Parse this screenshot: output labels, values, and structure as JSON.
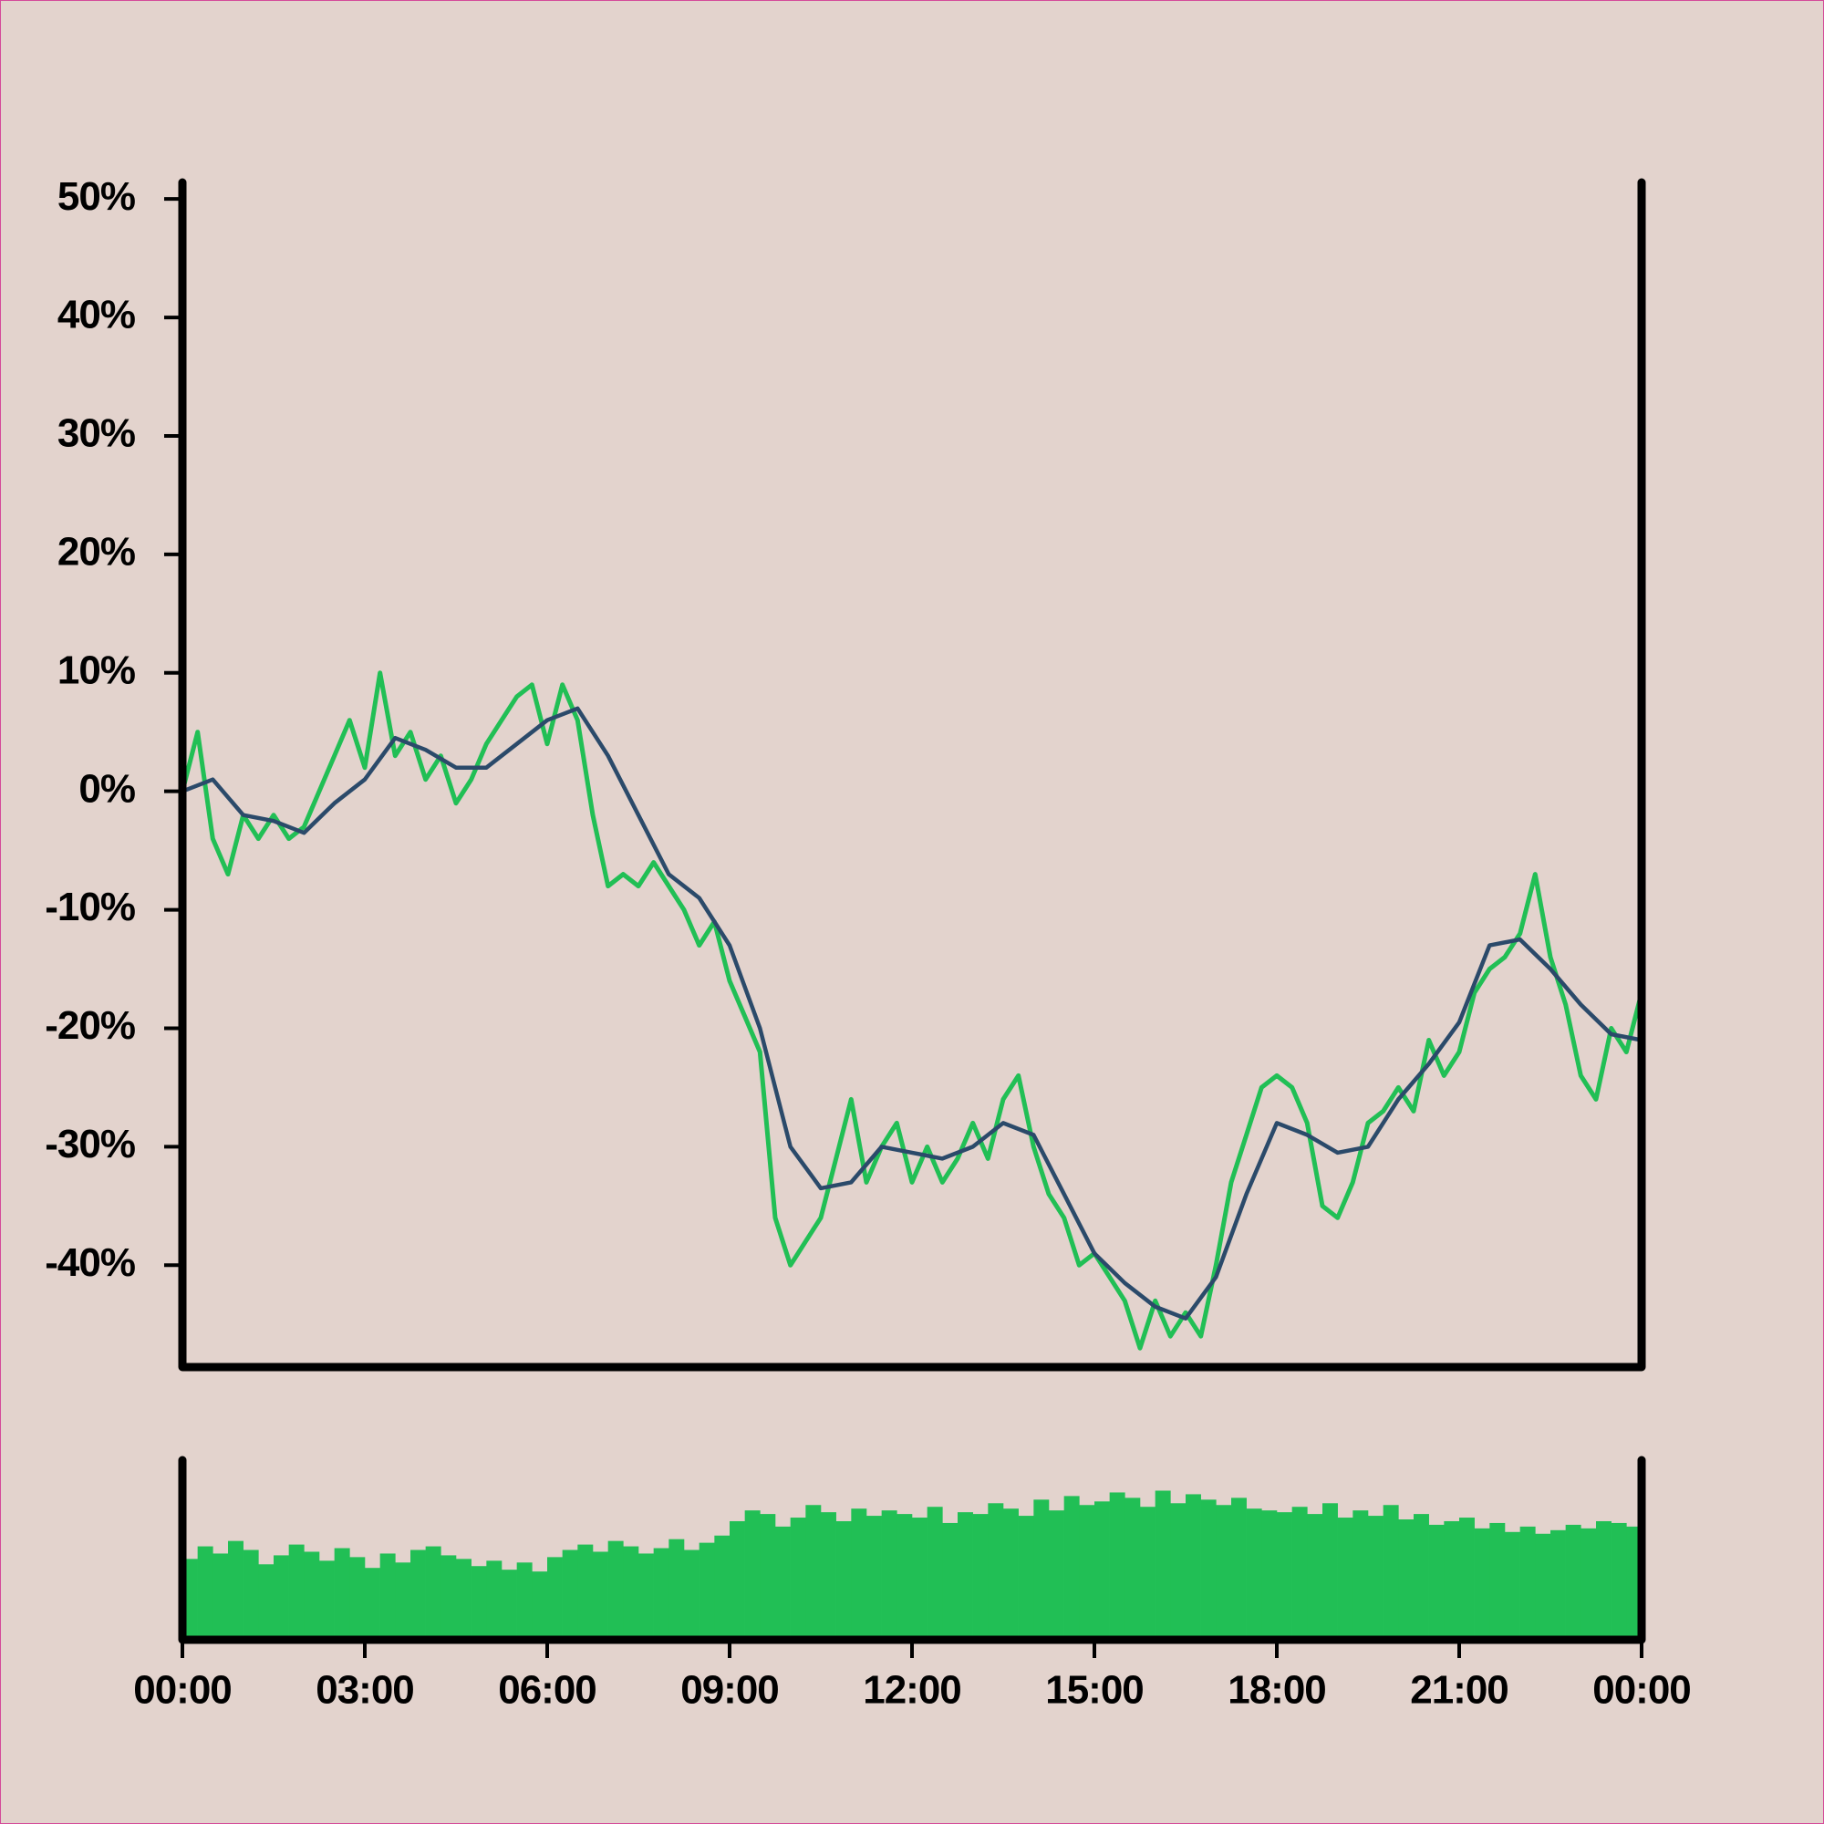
{
  "chart_data": [
    {
      "type": "line",
      "xlim": [
        0,
        24
      ],
      "ylim": [
        -48.6,
        51.4
      ],
      "yticks": [
        {
          "value": -40,
          "label": "-40%"
        },
        {
          "value": -30,
          "label": "-30%"
        },
        {
          "value": -20,
          "label": "-20%"
        },
        {
          "value": -10,
          "label": "-10%"
        },
        {
          "value": 0,
          "label": "0%"
        },
        {
          "value": 10,
          "label": "10%"
        },
        {
          "value": 20,
          "label": "20%"
        },
        {
          "value": 30,
          "label": "30%"
        },
        {
          "value": 40,
          "label": "40%"
        },
        {
          "value": 50,
          "label": "50%"
        }
      ],
      "series": [
        {
          "color": "#21bf55",
          "x": [
            0,
            0.25,
            0.5,
            0.75,
            1,
            1.25,
            1.5,
            1.75,
            2,
            2.25,
            2.5,
            2.75,
            3,
            3.25,
            3.5,
            3.75,
            4,
            4.25,
            4.5,
            4.75,
            5,
            5.25,
            5.5,
            5.75,
            6,
            6.25,
            6.5,
            6.75,
            7,
            7.25,
            7.5,
            7.75,
            8,
            8.25,
            8.5,
            8.75,
            9,
            9.25,
            9.5,
            9.75,
            10,
            10.25,
            10.5,
            10.75,
            11,
            11.25,
            11.5,
            11.75,
            12,
            12.25,
            12.5,
            12.75,
            13,
            13.25,
            13.5,
            13.75,
            14,
            14.25,
            14.5,
            14.75,
            15,
            15.25,
            15.5,
            15.75,
            16,
            16.25,
            16.5,
            16.75,
            17,
            17.25,
            17.5,
            17.75,
            18,
            18.25,
            18.5,
            18.75,
            19,
            19.25,
            19.5,
            19.75,
            20,
            20.25,
            20.5,
            20.75,
            21,
            21.25,
            21.5,
            21.75,
            22,
            22.25,
            22.5,
            22.75,
            23,
            23.25,
            23.5,
            23.75,
            24
          ],
          "values": [
            0,
            5,
            -4,
            -7,
            -2,
            -4,
            -2,
            -4,
            -3,
            0,
            3,
            6,
            2,
            10,
            3,
            5,
            1,
            3,
            -1,
            1,
            4,
            6,
            8,
            9,
            4,
            9,
            6,
            -2,
            -8,
            -7,
            -8,
            -6,
            -8,
            -10,
            -13,
            -11,
            -16,
            -19,
            -22,
            -36,
            -40,
            -38,
            -36,
            -31,
            -26,
            -33,
            -30,
            -28,
            -33,
            -30,
            -33,
            -31,
            -28,
            -31,
            -26,
            -24,
            -30,
            -34,
            -36,
            -40,
            -39,
            -41,
            -43,
            -47,
            -43,
            -46,
            -44,
            -46,
            -40,
            -33,
            -29,
            -25,
            -24,
            -25,
            -28,
            -35,
            -36,
            -33,
            -28,
            -27,
            -25,
            -27,
            -21,
            -24,
            -22,
            -17,
            -15,
            -14,
            -12,
            -7,
            -14,
            -18,
            -24,
            -26,
            -20,
            -22,
            -17
          ]
        },
        {
          "color": "#2b4a6a",
          "x": [
            0,
            0.5,
            1,
            1.5,
            2,
            2.5,
            3,
            3.5,
            4,
            4.5,
            5,
            5.5,
            6,
            6.5,
            7,
            7.5,
            8,
            8.5,
            9,
            9.5,
            10,
            10.5,
            11,
            11.5,
            12,
            12.5,
            13,
            13.5,
            14,
            14.5,
            15,
            15.5,
            16,
            16.5,
            17,
            17.5,
            18,
            18.5,
            19,
            19.5,
            20,
            20.5,
            21,
            21.5,
            22,
            22.5,
            23,
            23.5,
            24
          ],
          "values": [
            0,
            1,
            -2,
            -2.5,
            -3.5,
            -1,
            1,
            4.5,
            3.5,
            2,
            2,
            4,
            6,
            7,
            3,
            -2,
            -7,
            -9,
            -13,
            -20,
            -30,
            -33.5,
            -33,
            -30,
            -30.5,
            -31,
            -30,
            -28,
            -29,
            -34,
            -39,
            -41.5,
            -43.5,
            -44.5,
            -41,
            -34,
            -28,
            -29,
            -30.5,
            -30,
            -26,
            -23,
            -19.5,
            -13,
            -12.5,
            -15,
            -18,
            -20.5,
            -21
          ]
        }
      ]
    },
    {
      "type": "bar",
      "color": "#21bf55",
      "xlim": [
        0,
        24
      ],
      "ylim": [
        0,
        100
      ],
      "xticks": [
        {
          "value": 0,
          "label": "00:00"
        },
        {
          "value": 3,
          "label": "03:00"
        },
        {
          "value": 6,
          "label": "06:00"
        },
        {
          "value": 9,
          "label": "09:00"
        },
        {
          "value": 12,
          "label": "12:00"
        },
        {
          "value": 15,
          "label": "15:00"
        },
        {
          "value": 18,
          "label": "18:00"
        },
        {
          "value": 21,
          "label": "21:00"
        },
        {
          "value": 24,
          "label": "00:00"
        }
      ],
      "x": [
        0,
        0.25,
        0.5,
        0.75,
        1,
        1.25,
        1.5,
        1.75,
        2,
        2.25,
        2.5,
        2.75,
        3,
        3.25,
        3.5,
        3.75,
        4,
        4.25,
        4.5,
        4.75,
        5,
        5.25,
        5.5,
        5.75,
        6,
        6.25,
        6.5,
        6.75,
        7,
        7.25,
        7.5,
        7.75,
        8,
        8.25,
        8.5,
        8.75,
        9,
        9.25,
        9.5,
        9.75,
        10,
        10.25,
        10.5,
        10.75,
        11,
        11.25,
        11.5,
        11.75,
        12,
        12.25,
        12.5,
        12.75,
        13,
        13.25,
        13.5,
        13.75,
        14,
        14.25,
        14.5,
        14.75,
        15,
        15.25,
        15.5,
        15.75,
        16,
        16.25,
        16.5,
        16.75,
        17,
        17.25,
        17.5,
        17.75,
        18,
        18.25,
        18.5,
        18.75,
        19,
        19.25,
        19.5,
        19.75,
        20,
        20.25,
        20.5,
        20.75,
        21,
        21.25,
        21.5,
        21.75,
        22,
        22.25,
        22.5,
        22.75,
        23,
        23.25,
        23.5,
        23.75
      ],
      "values": [
        45,
        52,
        48,
        55,
        50,
        42,
        47,
        53,
        49,
        44,
        51,
        46,
        40,
        48,
        43,
        50,
        52,
        47,
        45,
        41,
        44,
        39,
        43,
        38,
        46,
        50,
        53,
        49,
        55,
        52,
        48,
        51,
        56,
        50,
        54,
        58,
        66,
        72,
        70,
        63,
        68,
        75,
        71,
        66,
        73,
        69,
        72,
        70,
        68,
        74,
        65,
        71,
        70,
        76,
        73,
        69,
        78,
        72,
        80,
        75,
        77,
        82,
        79,
        74,
        83,
        76,
        81,
        78,
        75,
        79,
        73,
        72,
        71,
        74,
        70,
        76,
        68,
        72,
        69,
        75,
        67,
        70,
        64,
        66,
        68,
        62,
        65,
        60,
        63,
        59,
        61,
        64,
        62,
        66,
        65,
        63
      ]
    }
  ]
}
